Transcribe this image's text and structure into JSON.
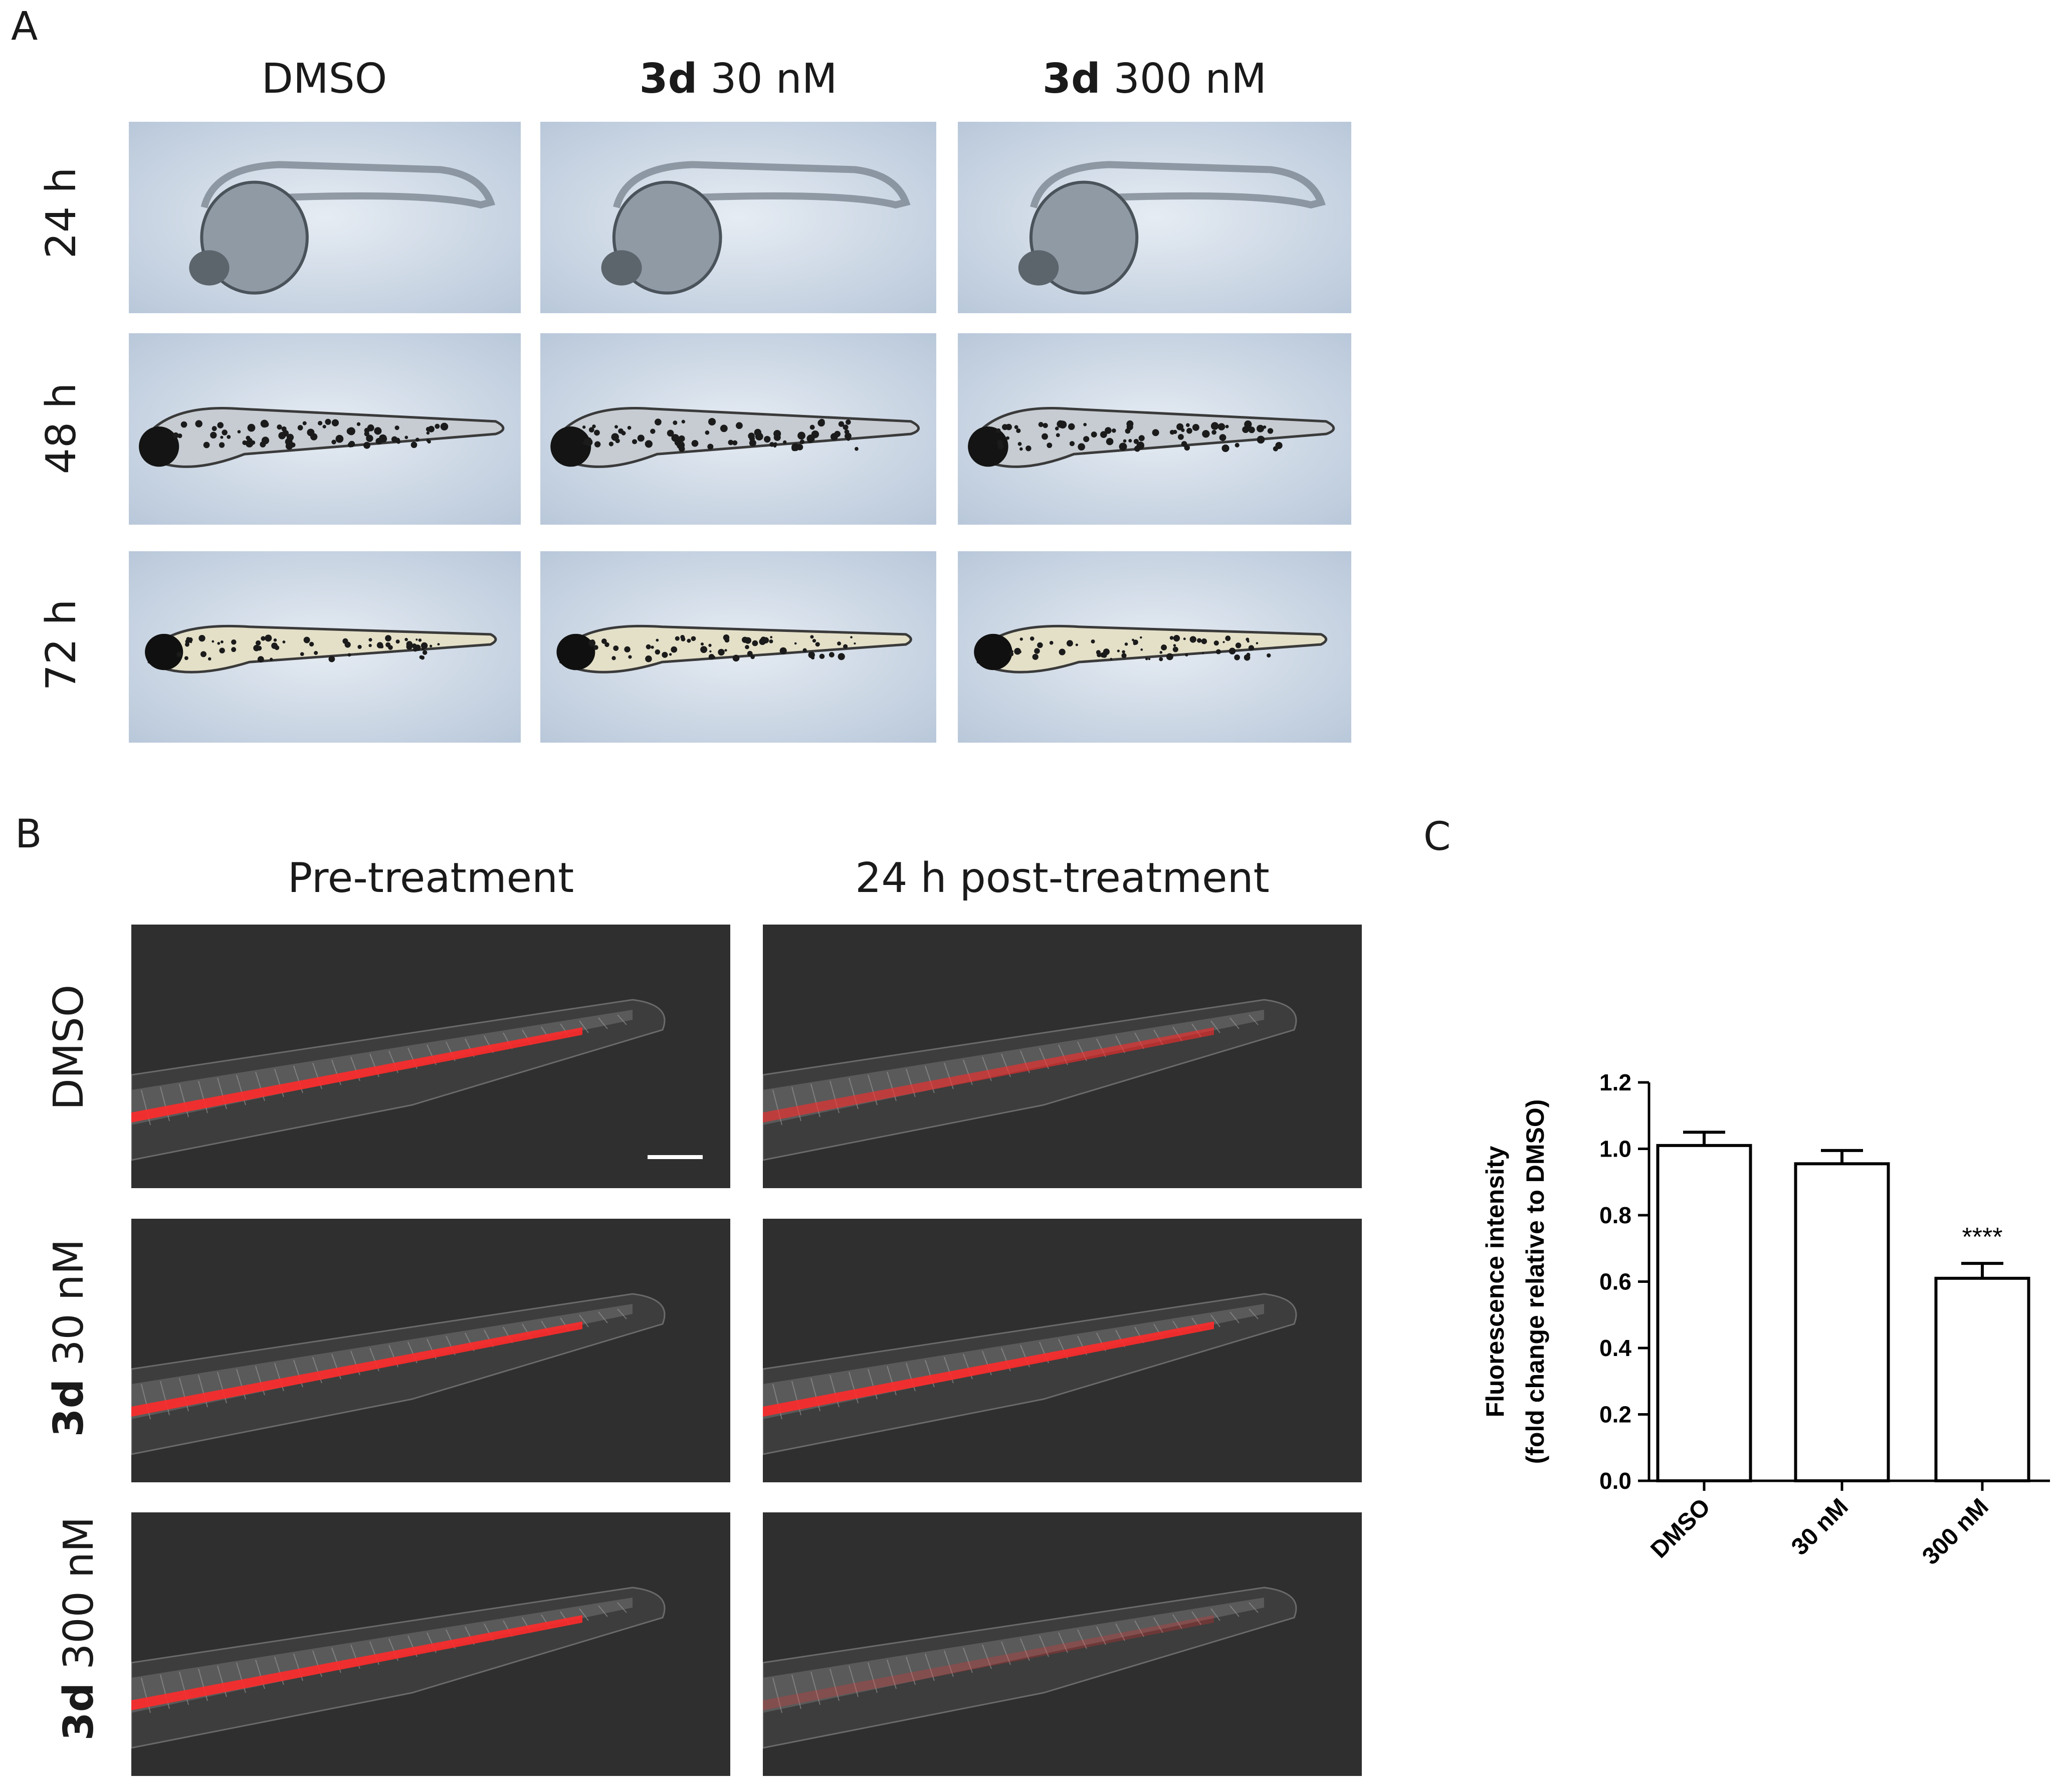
{
  "panels": {
    "a": "A",
    "b": "B",
    "c": "C"
  },
  "panel_a": {
    "columns": [
      {
        "bold": "",
        "text": "DMSO"
      },
      {
        "bold": "3d",
        "text": " 30 nM"
      },
      {
        "bold": "3d",
        "text": " 300 nM"
      }
    ],
    "rows": [
      "24 h",
      "48 h",
      "72 h"
    ]
  },
  "panel_b": {
    "columns": [
      "Pre-treatment",
      "24 h post-treatment"
    ],
    "rows": [
      {
        "bold": "",
        "text": "DMSO"
      },
      {
        "bold": "3d",
        "text": " 30 nM"
      },
      {
        "bold": "3d",
        "text": " 300 nM"
      }
    ]
  },
  "chart_data": {
    "type": "bar",
    "categories": [
      "DMSO",
      "30 nM",
      "300 nM"
    ],
    "values": [
      1.01,
      0.955,
      0.61
    ],
    "errors": [
      0.04,
      0.04,
      0.045
    ],
    "annotations": [
      "",
      "",
      "****"
    ],
    "ylabel": "Fluorescence intensity\n(fold change relative to DMSO)",
    "ylabel_lines": [
      "Fluorescence intensity",
      "(fold change relative to DMSO)"
    ],
    "yticks": [
      "0.0",
      "0.2",
      "0.4",
      "0.6",
      "0.8",
      "1.0",
      "1.2"
    ],
    "ylim": [
      0,
      1.2
    ],
    "grid": false,
    "colors": {
      "bar_fill": "#ffffff",
      "bar_stroke": "#000000"
    }
  }
}
